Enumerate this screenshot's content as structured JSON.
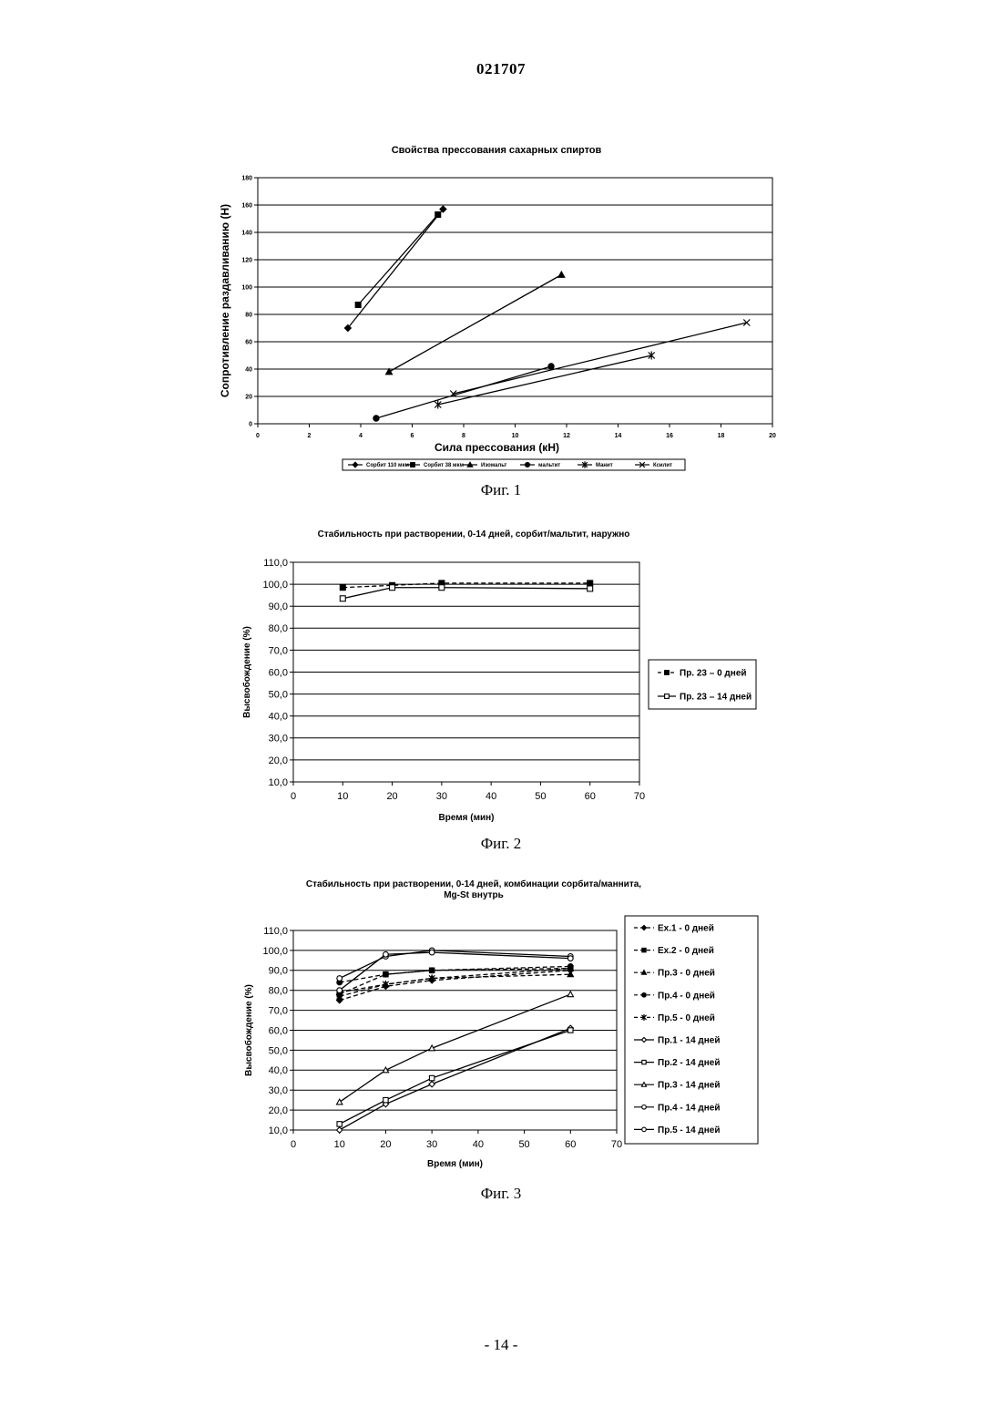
{
  "header": {
    "doc_number": "021707"
  },
  "footer": {
    "page_number": "- 14 -"
  },
  "captions": {
    "fig1": "Фиг. 1",
    "fig2": "Фиг. 2",
    "fig3": "Фиг. 3"
  },
  "chart_data": [
    {
      "type": "line",
      "title": "Свойства прессования сахарных спиртов",
      "xlabel": "Сила прессования (кН)",
      "ylabel": "Сопротивление раздавливанию (Н)",
      "xlim": [
        0,
        20
      ],
      "ylim": [
        0,
        180
      ],
      "xticks": [
        0,
        2,
        4,
        6,
        8,
        10,
        12,
        14,
        16,
        18,
        20
      ],
      "yticks": [
        0,
        20,
        40,
        60,
        80,
        100,
        120,
        140,
        160,
        180
      ],
      "grid": "horizontal",
      "legend": "bottom",
      "series": [
        {
          "name": "Сорбит 110 мкм",
          "marker": "diamond",
          "points": [
            [
              3.5,
              70
            ],
            [
              7.2,
              157
            ]
          ]
        },
        {
          "name": "Сорбит 38 мкм",
          "marker": "square",
          "points": [
            [
              3.9,
              87
            ],
            [
              7.0,
              153
            ]
          ]
        },
        {
          "name": "Изомальт",
          "marker": "triangle",
          "points": [
            [
              5.1,
              38
            ],
            [
              11.8,
              109
            ]
          ]
        },
        {
          "name": "мальтит",
          "marker": "circle",
          "points": [
            [
              4.6,
              4
            ],
            [
              11.4,
              42
            ]
          ]
        },
        {
          "name": "Манит",
          "marker": "star",
          "points": [
            [
              7.0,
              14
            ],
            [
              15.3,
              50
            ]
          ]
        },
        {
          "name": "Ксилит",
          "marker": "x",
          "points": [
            [
              7.6,
              22
            ],
            [
              19.0,
              74
            ]
          ]
        }
      ]
    },
    {
      "type": "line",
      "title": "Стабильность при растворении, 0-14 дней, сорбит/мальтит, наружно",
      "xlabel": "Время (мин)",
      "ylabel": "Высвобождение (%)",
      "xlim": [
        0,
        70
      ],
      "ylim": [
        10,
        110
      ],
      "xticks": [
        0,
        10,
        20,
        30,
        40,
        50,
        60,
        70
      ],
      "yticks": [
        "10,0",
        "20,0",
        "30,0",
        "40,0",
        "50,0",
        "60,0",
        "70,0",
        "80,0",
        "90,0",
        "100,0",
        "110,0"
      ],
      "grid": "horizontal",
      "legend": "right",
      "series": [
        {
          "name": "Пр. 23 – 0 дней",
          "marker": "square",
          "style": "dashed",
          "points": [
            [
              10,
              98.5
            ],
            [
              20,
              99.5
            ],
            [
              30,
              100.5
            ],
            [
              60,
              100.5
            ]
          ]
        },
        {
          "name": "Пр. 23 – 14 дней",
          "marker": "square-open",
          "style": "solid",
          "points": [
            [
              10,
              93.5
            ],
            [
              20,
              98.5
            ],
            [
              30,
              98.5
            ],
            [
              60,
              98.0
            ]
          ]
        }
      ]
    },
    {
      "type": "line",
      "title": "Стабильность при растворении, 0-14 дней, комбинации сорбита/маннита,",
      "subtitle": "Mg-St внутрь",
      "xlabel": "Время (мин)",
      "ylabel": "Высвобождение (%)",
      "xlim": [
        0,
        70
      ],
      "ylim": [
        10,
        110
      ],
      "xticks": [
        0,
        10,
        20,
        30,
        40,
        50,
        60,
        70
      ],
      "yticks": [
        "10,0",
        "20,0",
        "30,0",
        "40,0",
        "50,0",
        "60,0",
        "70,0",
        "80,0",
        "90,0",
        "100,0",
        "110,0"
      ],
      "grid": "horizontal",
      "legend": "right",
      "series": [
        {
          "name": "Ex.1 - 0 дней",
          "marker": "diamond",
          "style": "dashed",
          "points": [
            [
              10,
              75
            ],
            [
              20,
              82
            ],
            [
              30,
              85
            ],
            [
              60,
              90
            ]
          ]
        },
        {
          "name": "Ex.2 - 0 дней",
          "marker": "square",
          "style": "dashed",
          "points": [
            [
              10,
              78
            ],
            [
              20,
              88
            ],
            [
              30,
              90
            ],
            [
              60,
              91
            ]
          ]
        },
        {
          "name": "Пр.3 - 0 дней",
          "marker": "triangle",
          "style": "dashed",
          "points": [
            [
              10,
              79
            ],
            [
              20,
              83
            ],
            [
              30,
              86
            ],
            [
              60,
              88
            ]
          ]
        },
        {
          "name": "Пр.4 - 0 дней",
          "marker": "circle",
          "style": "dashed",
          "points": [
            [
              10,
              84
            ],
            [
              20,
              88
            ],
            [
              30,
              90
            ],
            [
              60,
              92
            ]
          ]
        },
        {
          "name": "Пр.5 - 0 дней",
          "marker": "star",
          "style": "dashed",
          "points": [
            [
              10,
              77
            ],
            [
              20,
              83
            ],
            [
              30,
              86
            ],
            [
              60,
              91
            ]
          ]
        },
        {
          "name": "Пр.1 - 14 дней",
          "marker": "diamond-open",
          "style": "solid",
          "points": [
            [
              10,
              10
            ],
            [
              20,
              23
            ],
            [
              30,
              33
            ],
            [
              60,
              61
            ]
          ]
        },
        {
          "name": "Пр.2 - 14 дней",
          "marker": "square-open",
          "style": "solid",
          "points": [
            [
              10,
              13
            ],
            [
              20,
              25
            ],
            [
              30,
              36
            ],
            [
              60,
              60
            ]
          ]
        },
        {
          "name": "Пр.3 - 14 дней",
          "marker": "triangle-open",
          "style": "solid",
          "points": [
            [
              10,
              24
            ],
            [
              20,
              40
            ],
            [
              30,
              51
            ],
            [
              60,
              78
            ]
          ]
        },
        {
          "name": "Пр.4 - 14 дней",
          "marker": "circle-open",
          "style": "solid",
          "points": [
            [
              10,
              86
            ],
            [
              20,
              97
            ],
            [
              30,
              100
            ],
            [
              60,
              97
            ]
          ]
        },
        {
          "name": "Пр.5 - 14 дней",
          "marker": "circle-open",
          "style": "solid",
          "points": [
            [
              10,
              80
            ],
            [
              20,
              98
            ],
            [
              30,
              99
            ],
            [
              60,
              96
            ]
          ]
        }
      ]
    }
  ]
}
